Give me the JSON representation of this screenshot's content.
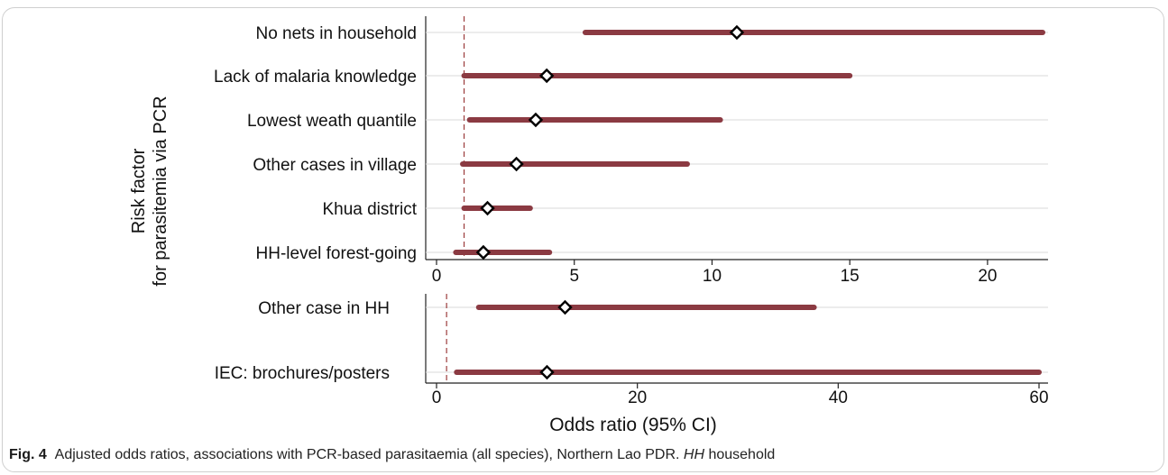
{
  "colors": {
    "ci_line": "#8b3a42",
    "ref_line": "#9b3b3b",
    "grid": "#d9d9d9",
    "marker_fill": "#ffffff",
    "marker_stroke": "#000000"
  },
  "y_axis_title": [
    "Risk factor",
    "for parasitemia via PCR"
  ],
  "x_axis_title": "Odds ratio (95% CI)",
  "caption": {
    "label": "Fig. 4",
    "text_before": "Adjusted odds ratios, associations with PCR-based parasitaemia (all species), Northern Lao PDR.",
    "abbr": "HH",
    "abbr_def": "household"
  },
  "chart_data": [
    {
      "type": "forest",
      "xlim": [
        0,
        22
      ],
      "xticks": [
        0,
        5,
        10,
        15,
        20
      ],
      "reference_line": 1,
      "grid": true,
      "rows": [
        {
          "label": "No nets in household",
          "or": 10.9,
          "lower": 5.4,
          "upper": 22
        },
        {
          "label": "Lack of malaria knowledge",
          "or": 4.0,
          "lower": 1.0,
          "upper": 15.0
        },
        {
          "label": "Lowest weath quantile",
          "or": 3.6,
          "lower": 1.2,
          "upper": 10.3
        },
        {
          "label": "Other cases in village",
          "or": 2.9,
          "lower": 0.95,
          "upper": 9.1
        },
        {
          "label": "Khua district",
          "or": 1.85,
          "lower": 1.0,
          "upper": 3.4
        },
        {
          "label": "HH-level forest-going",
          "or": 1.7,
          "lower": 0.7,
          "upper": 4.1
        }
      ]
    },
    {
      "type": "forest",
      "xlim": [
        0,
        60
      ],
      "xticks": [
        0,
        20,
        40,
        60
      ],
      "reference_line": 1,
      "grid": true,
      "rows": [
        {
          "label": "Other case in HH",
          "or": 12.8,
          "lower": 4.2,
          "upper": 37.6
        },
        {
          "label": "IEC: brochures/posters",
          "or": 11.0,
          "lower": 2.0,
          "upper": 60
        }
      ]
    }
  ]
}
